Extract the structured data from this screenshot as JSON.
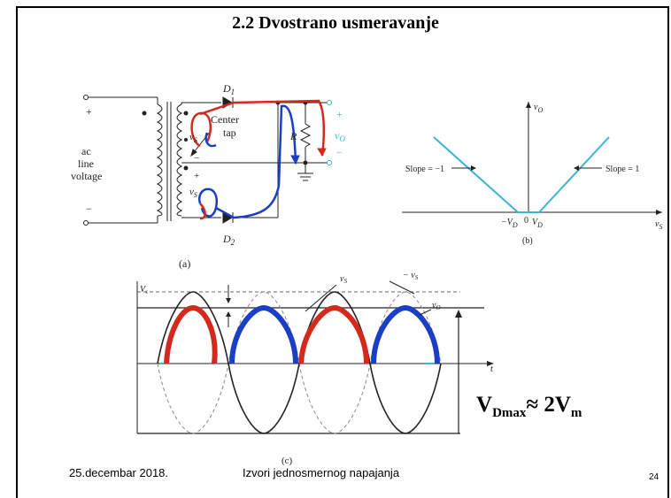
{
  "slide": {
    "title": "2.2 Dvostrano usmeravanje",
    "footer_date": "25.decembar 2018.",
    "footer_center": "Izvori jednosmernog napajanja",
    "page_number": "24"
  },
  "circuit": {
    "plus_top": "+",
    "minus_bottom": "−",
    "ac": "ac",
    "line": "line",
    "voltage": "voltage",
    "center": "Center",
    "tap": "tap",
    "d1": "D",
    "d1_sub": "1",
    "d2": "D",
    "d2_sub": "2",
    "vs_top": "v",
    "vs_top_sub": "S",
    "vs_bottom": "v",
    "vs_bottom_sub": "S",
    "r": "R",
    "vo": "v",
    "vo_sub": "O",
    "plus_ct": "+",
    "minus_ct": "−",
    "plus_out": "+",
    "minus_out": "−",
    "caption": "(a)"
  },
  "transfer": {
    "y_axis": "v",
    "y_axis_sub": "O",
    "x_axis": "v",
    "x_axis_sub": "S",
    "slope_left": "Slope = −1",
    "slope_right": "Slope = 1",
    "minus_vd": "−V",
    "minus_vd_sub": "D",
    "zero": "0",
    "vd": "V",
    "vd_sub": "D",
    "caption": "(b)"
  },
  "waveform": {
    "vs_label": "V",
    "vs_label_sub": "s",
    "minus_vs": "− v",
    "minus_vs_sub": "S",
    "vs": "v",
    "vs_sub": "S",
    "vo": "v",
    "vo_sub": "O",
    "t": "t",
    "caption": "(c)"
  },
  "equation": {
    "main": "V",
    "sub": "Dmax",
    "approx": "≈ 2V",
    "sub2": "m"
  },
  "colors": {
    "red": "#d42a1e",
    "blue": "#1a3fc4",
    "cyan": "#3bb4d8",
    "dark": "#222222"
  }
}
